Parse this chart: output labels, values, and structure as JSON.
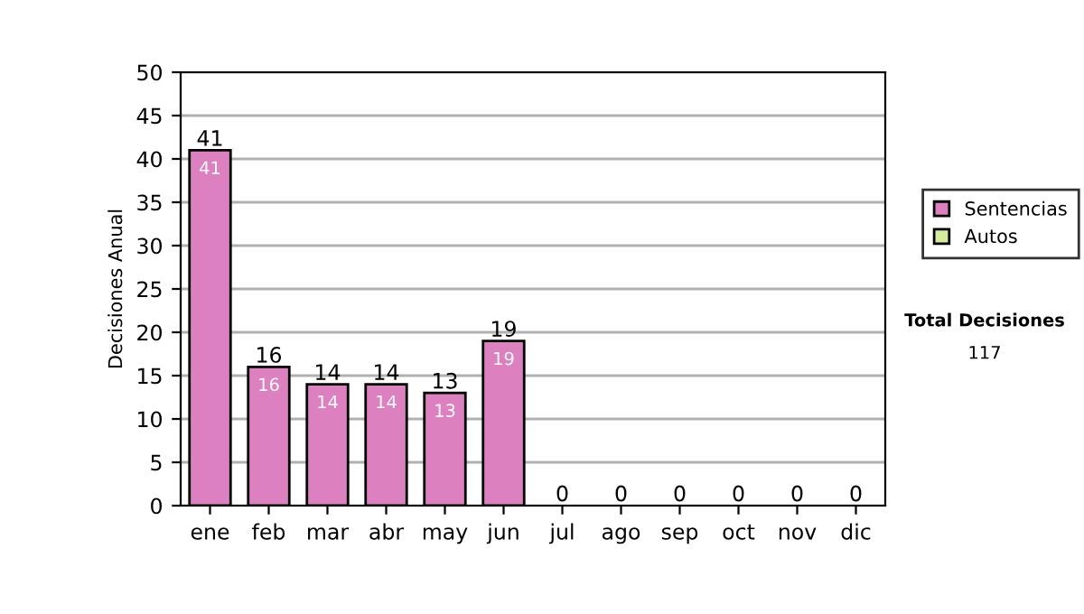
{
  "chart_data": {
    "type": "bar",
    "stacked": true,
    "ylabel": "Decisiones Anual",
    "categories": [
      "ene",
      "feb",
      "mar",
      "abr",
      "may",
      "jun",
      "jul",
      "ago",
      "sep",
      "oct",
      "nov",
      "dic"
    ],
    "series": [
      {
        "name": "Sentencias",
        "color": "#dd80c0",
        "values": [
          41,
          16,
          14,
          14,
          13,
          19,
          0,
          0,
          0,
          0,
          0,
          0
        ],
        "value_labels": [
          "41",
          "16",
          "14",
          "14",
          "13",
          "19",
          null,
          null,
          null,
          null,
          null,
          null
        ]
      },
      {
        "name": "Autos",
        "color": "#d4ec9c",
        "values": [
          0,
          0,
          0,
          0,
          0,
          0,
          0,
          0,
          0,
          0,
          0,
          0
        ]
      }
    ],
    "totals": [
      "41",
      "16",
      "14",
      "14",
      "13",
      "19",
      "0",
      "0",
      "0",
      "0",
      "0",
      "0"
    ],
    "ylim": [
      0,
      50
    ],
    "yticks": [
      0,
      5,
      10,
      15,
      20,
      25,
      30,
      35,
      40,
      45,
      50
    ],
    "grid": "y",
    "legend": "right",
    "annotations": [
      "Total Decisiones",
      "117"
    ]
  }
}
